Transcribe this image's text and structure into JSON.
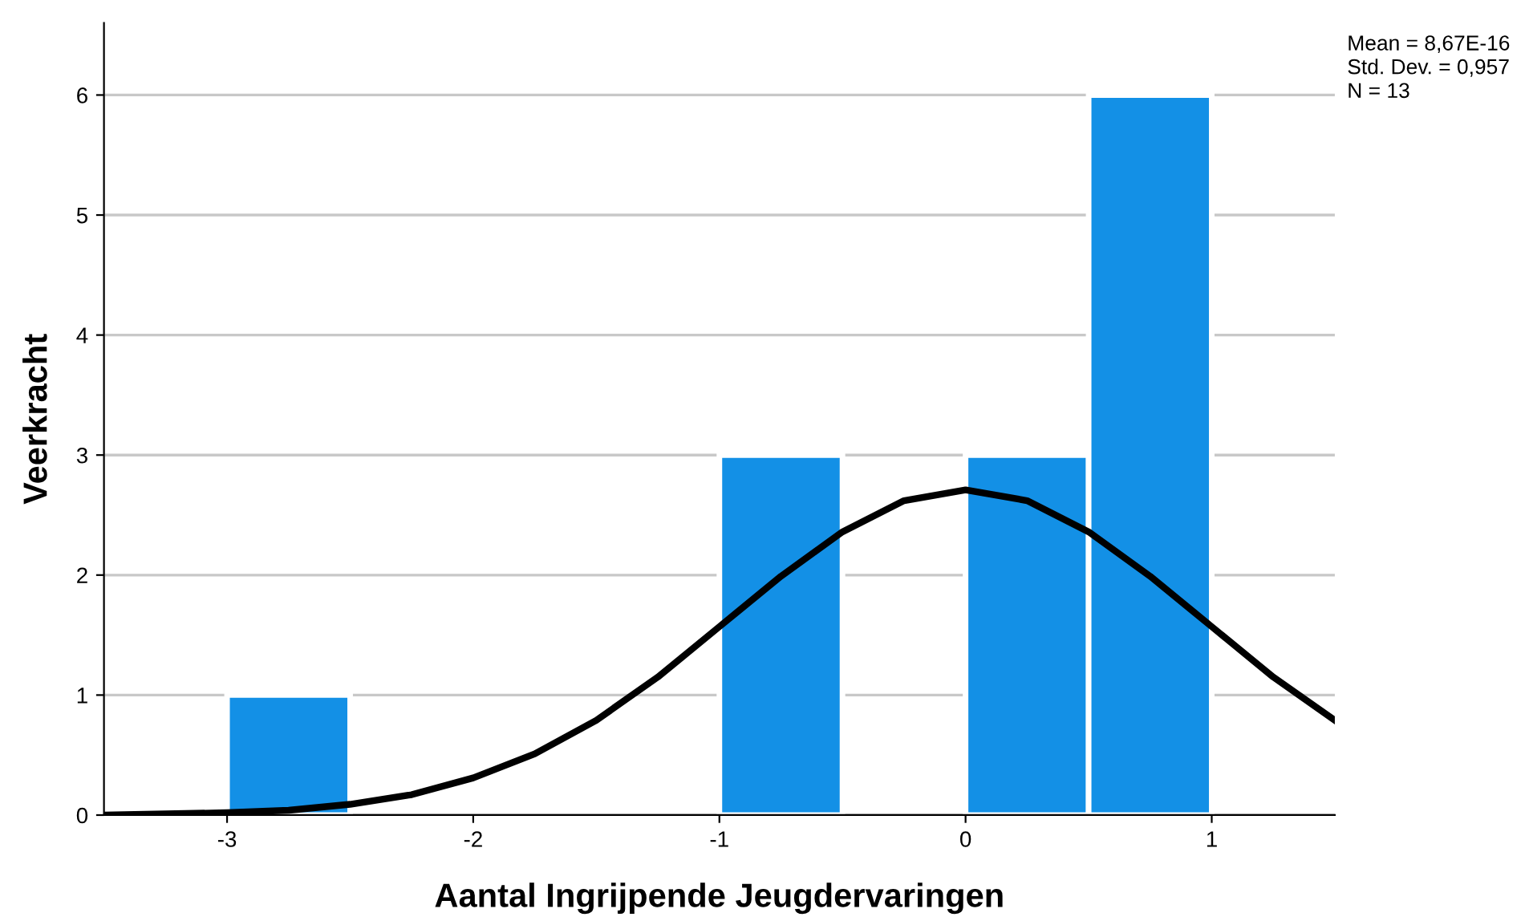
{
  "chart_data": {
    "type": "histogram",
    "xlabel": "Aantal Ingrijpende Jeugdervaringen",
    "ylabel": "Veerkracht",
    "bins": [
      -3.5,
      -3,
      -2.5,
      -2,
      -1.5,
      -1,
      -0.5,
      0,
      0.5,
      1,
      1.5
    ],
    "series": [
      {
        "color": "#1390e6",
        "values": [
          0,
          1,
          0,
          0,
          0,
          3,
          0,
          3,
          6,
          0
        ]
      },
      {
        "type": "line",
        "color": "#000000",
        "x": [
          -3.5,
          -3.25,
          -3,
          -2.75,
          -2.5,
          -2.25,
          -2,
          -1.75,
          -1.5,
          -1.25,
          -1,
          -0.75,
          -0.5,
          -0.25,
          0,
          0.25,
          0.5,
          0.75,
          1,
          1.25,
          1.5
        ],
        "values": [
          0.0,
          0.01,
          0.02,
          0.04,
          0.09,
          0.17,
          0.31,
          0.51,
          0.79,
          1.15,
          1.57,
          1.99,
          2.36,
          2.62,
          2.71,
          2.62,
          2.36,
          1.99,
          1.57,
          1.15,
          0.79
        ]
      }
    ],
    "xlim": [
      -3.5,
      1.5
    ],
    "xticks": [
      -3,
      -2,
      -1,
      0,
      1
    ],
    "ylim": [
      0,
      6.6
    ],
    "yticks": [
      0,
      1,
      2,
      3,
      4,
      5,
      6
    ],
    "grid": "y",
    "annotations": [
      "Mean = 8,67E-16",
      "Std. Dev. = 0,957",
      "N = 13"
    ]
  }
}
